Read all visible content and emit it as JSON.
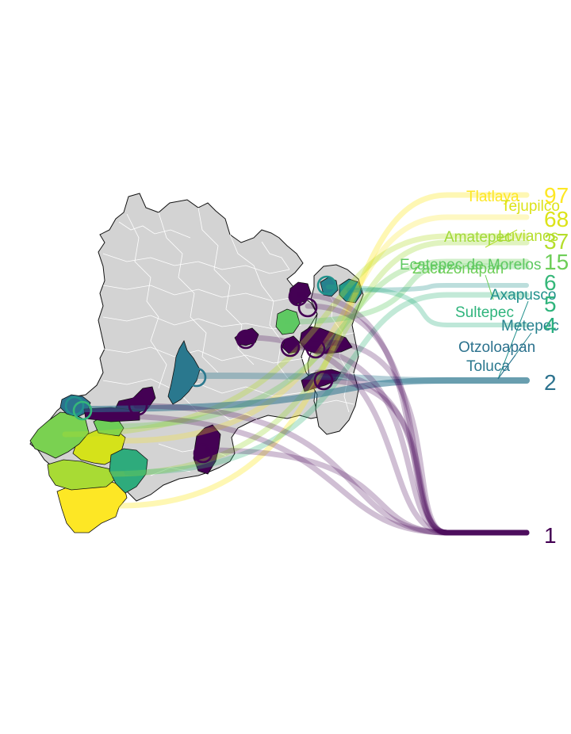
{
  "chart_data": {
    "type": "map",
    "title": "",
    "color_scale": {
      "low": "#440154",
      "mid1": "#31688e",
      "mid2": "#21918c",
      "mid3": "#35b779",
      "mid4": "#6ece58",
      "mid5": "#b5de2b",
      "high": "#fde725"
    },
    "base_fill": "#d3d3d3",
    "municipalities": [
      {
        "name": "Tlatlaya",
        "value": 97,
        "color": "#fde725"
      },
      {
        "name": "Tejupilco",
        "value": 68,
        "color": "#dce319"
      },
      {
        "name": "Luvianos",
        "value": 37,
        "color": "#b5de2b"
      },
      {
        "name": "Amatepec",
        "value": 37,
        "color": "#a0da39"
      },
      {
        "name": "Zacazonapan",
        "value": 15,
        "color": "#6ece58"
      },
      {
        "name": "Ecatepec de Morelos",
        "value": 15,
        "color": "#5ec962"
      },
      {
        "name": "Axapusco",
        "value": 6,
        "color": "#21918c"
      },
      {
        "name": "Sultepec",
        "value": 5,
        "color": "#2fb47c"
      },
      {
        "name": "Metepec",
        "value": 4,
        "color": "#26828e"
      },
      {
        "name": "Otzoloapan",
        "value": 2,
        "color": "#2c728e"
      },
      {
        "name": "Toluca",
        "value": 2,
        "color": "#2a788e"
      }
    ],
    "value_labels": [
      {
        "text": "97",
        "color": "#fde725"
      },
      {
        "text": "68",
        "color": "#dce319"
      },
      {
        "text": "37",
        "color": "#b5de2b"
      },
      {
        "text": "15",
        "color": "#6ece58"
      },
      {
        "text": "6",
        "color": "#35b779"
      },
      {
        "text": "5",
        "color": "#2fb47c"
      },
      {
        "text": "4",
        "color": "#29af7f"
      },
      {
        "text": "2",
        "color": "#2c728e"
      },
      {
        "text": "1",
        "color": "#440154"
      }
    ]
  }
}
